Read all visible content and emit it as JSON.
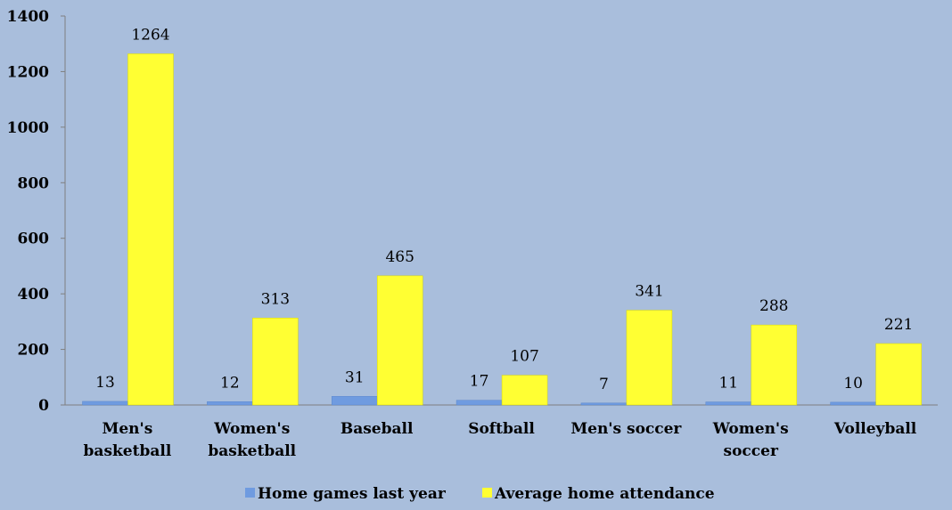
{
  "chart_data": {
    "type": "bar",
    "categories": [
      "Men's basketball",
      "Women's basketball",
      "Baseball",
      "Softball",
      "Men's soccer",
      "Women's soccer",
      "Volleyball"
    ],
    "category_lines": [
      [
        "Men's",
        "basketball"
      ],
      [
        "Women's",
        "basketball"
      ],
      [
        "Baseball"
      ],
      [
        "Softball"
      ],
      [
        "Men's soccer"
      ],
      [
        "Women's",
        "soccer"
      ],
      [
        "Volleyball"
      ]
    ],
    "series": [
      {
        "name": "Home games last year",
        "values": [
          13,
          12,
          31,
          17,
          7,
          11,
          10
        ],
        "color": "#6f9be0"
      },
      {
        "name": "Average home attendance",
        "values": [
          1264,
          313,
          465,
          107,
          341,
          288,
          221
        ],
        "color": "#ffff33"
      }
    ],
    "ylim": [
      0,
      1400
    ],
    "yticks": [
      "0",
      "200",
      "400",
      "600",
      "800",
      "1000",
      "1200",
      "1400"
    ],
    "grid": false,
    "legend_position": "bottom",
    "background": "#a9bedc"
  }
}
